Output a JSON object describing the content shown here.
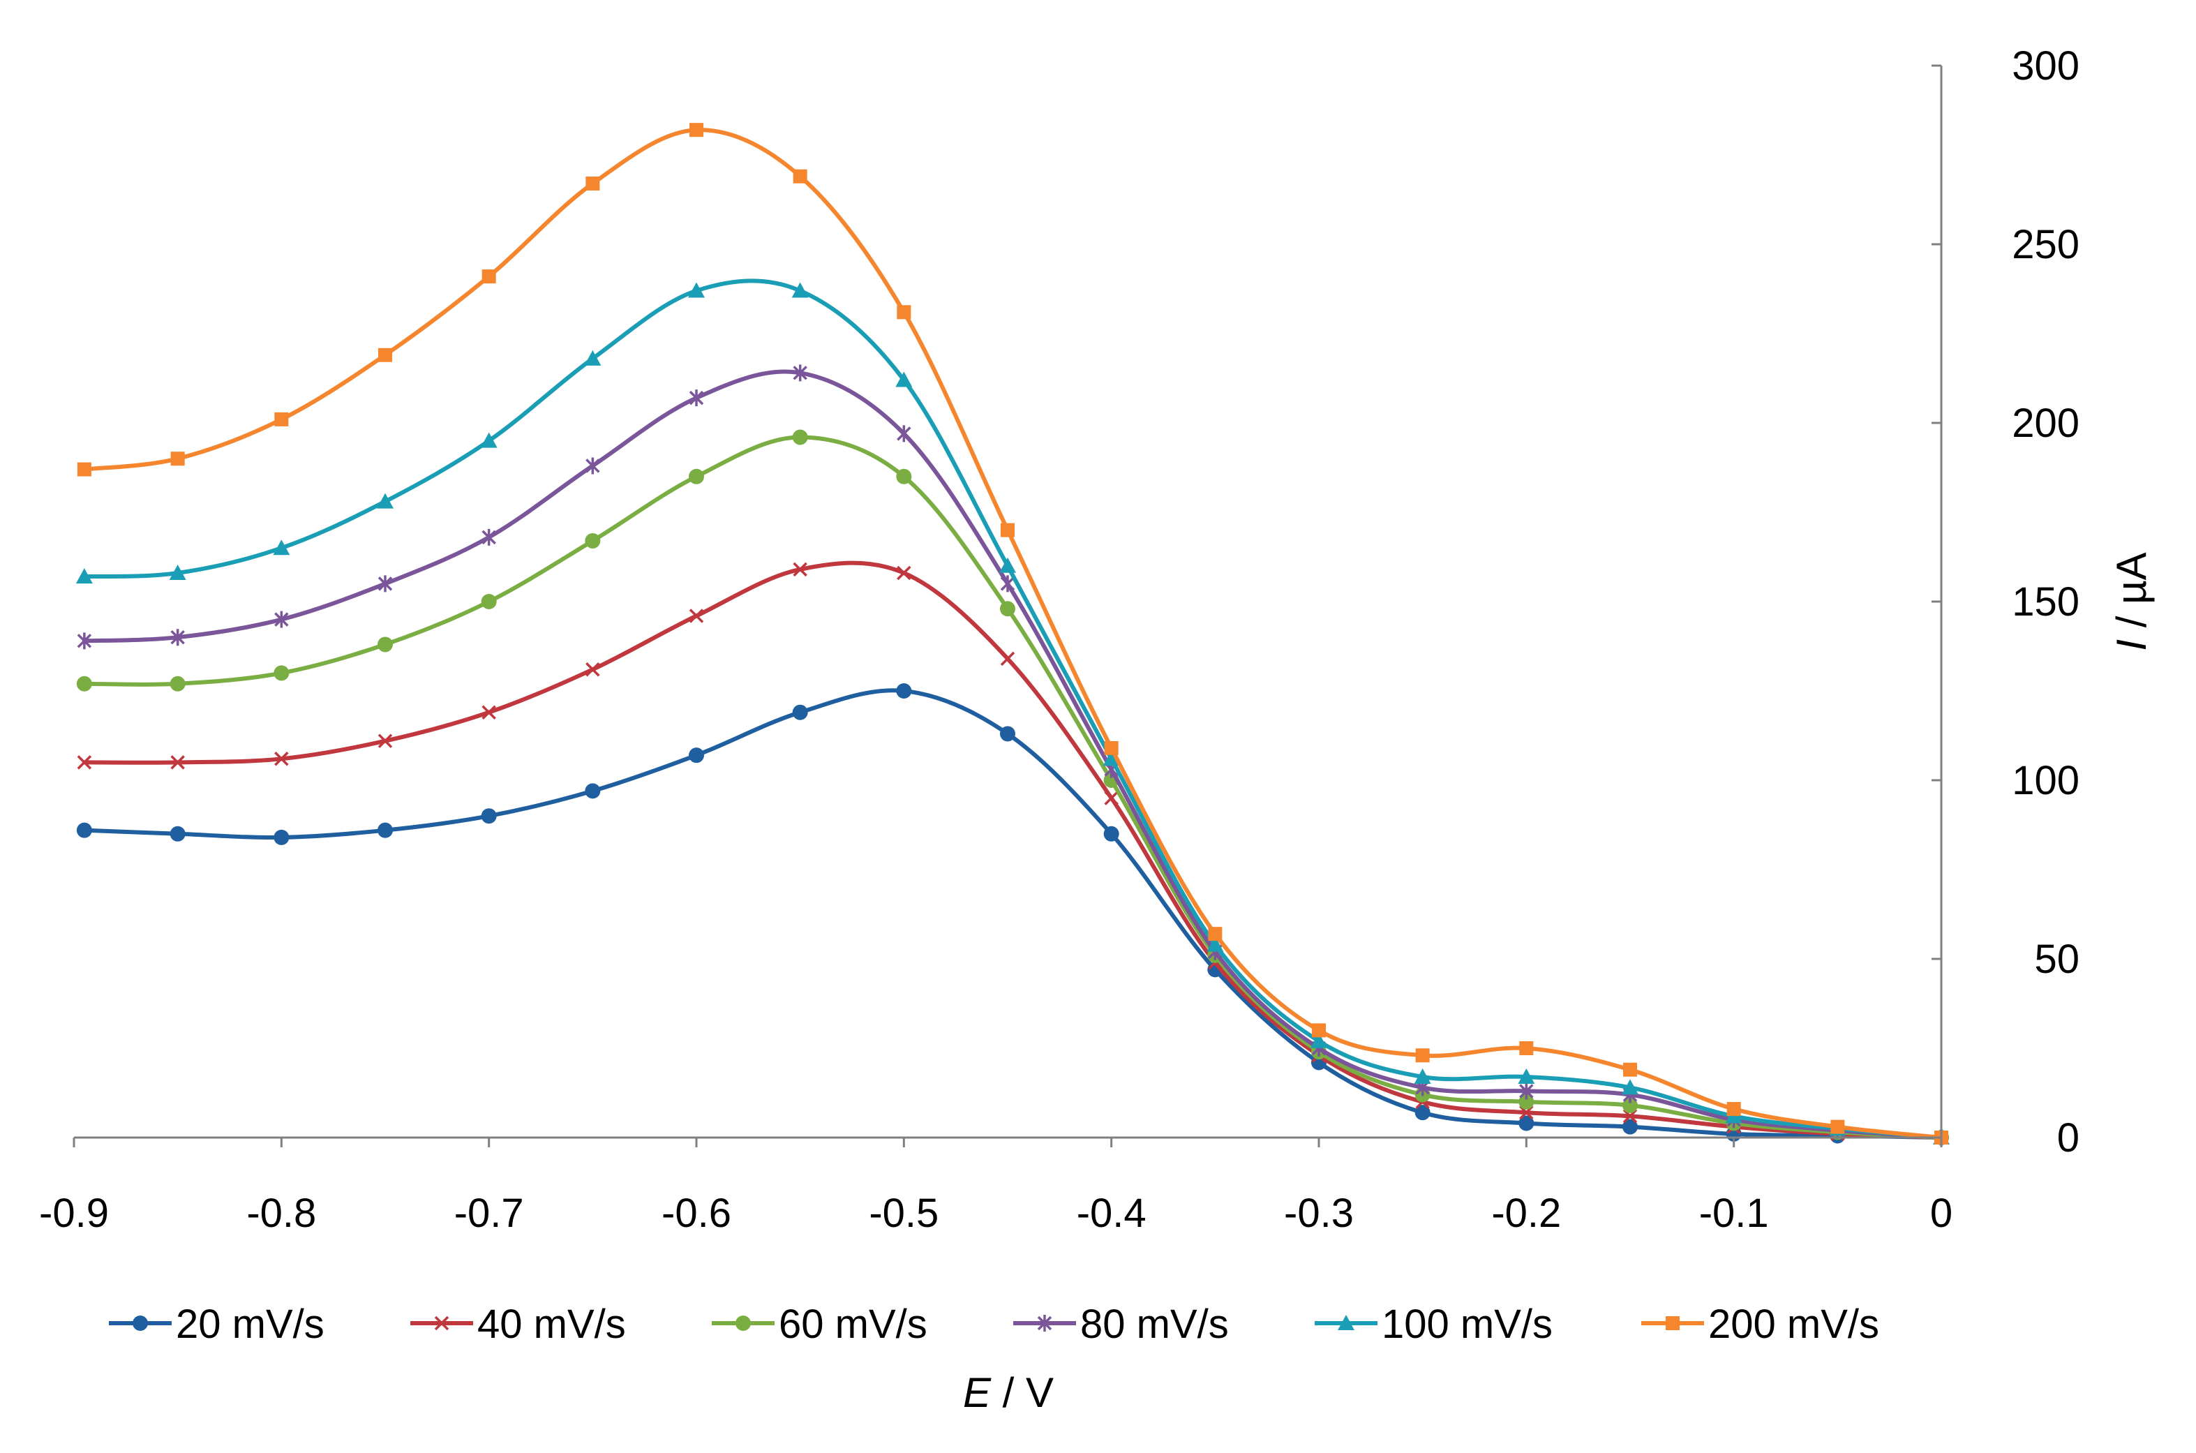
{
  "chart_data": {
    "type": "line",
    "title": "",
    "xlabel": {
      "italic": "E",
      "rest": " / V"
    },
    "ylabel": {
      "italic": "I",
      "rest": " / µA"
    },
    "xlim": [
      -0.9,
      0
    ],
    "ylim": [
      0,
      300
    ],
    "xticks": [
      -0.9,
      -0.8,
      -0.7,
      -0.6,
      -0.5,
      -0.4,
      -0.3,
      -0.2,
      -0.1,
      0
    ],
    "xtick_labels": [
      "-0.9",
      "-0.8",
      "-0.7",
      "-0.6",
      "-0.5",
      "-0.4",
      "-0.3",
      "-0.2",
      "-0.1",
      "0"
    ],
    "yticks": [
      0,
      50,
      100,
      150,
      200,
      250,
      300
    ],
    "ytick_labels": [
      "0",
      "50",
      "100",
      "150",
      "200",
      "250",
      "300"
    ],
    "y_axis_position": "right",
    "grid": false,
    "legend_position": "bottom",
    "x": [
      -0.895,
      -0.85,
      -0.8,
      -0.75,
      -0.7,
      -0.65,
      -0.6,
      -0.55,
      -0.5,
      -0.45,
      -0.4,
      -0.35,
      -0.3,
      -0.25,
      -0.2,
      -0.15,
      -0.1,
      -0.05,
      0
    ],
    "series": [
      {
        "name": "20 mV/s",
        "color": "#1F5FA0",
        "marker": "circle",
        "values": [
          86,
          85,
          84,
          86,
          90,
          97,
          107,
          119,
          125,
          113,
          85,
          47,
          21,
          7,
          4,
          3,
          1,
          0.5,
          0
        ]
      },
      {
        "name": "40 mV/s",
        "color": "#C0373D",
        "marker": "x",
        "values": [
          105,
          105,
          106,
          111,
          119,
          131,
          146,
          159,
          158,
          134,
          95,
          49,
          23,
          10,
          7,
          6,
          3,
          1,
          0
        ]
      },
      {
        "name": "60 mV/s",
        "color": "#7AAE43",
        "marker": "circle",
        "values": [
          127,
          127,
          130,
          138,
          150,
          167,
          185,
          196,
          185,
          148,
          100,
          51,
          24,
          12,
          10,
          9,
          4,
          1.5,
          0
        ]
      },
      {
        "name": "80 mV/s",
        "color": "#7B559A",
        "marker": "star",
        "values": [
          139,
          140,
          145,
          155,
          168,
          188,
          207,
          214,
          197,
          155,
          103,
          52,
          25,
          14,
          13,
          12,
          5,
          2,
          0
        ]
      },
      {
        "name": "100 mV/s",
        "color": "#1A9EB5",
        "marker": "triangle",
        "values": [
          157,
          158,
          165,
          178,
          195,
          218,
          237,
          237,
          212,
          160,
          106,
          54,
          27,
          17,
          17,
          14,
          6,
          2.5,
          0
        ]
      },
      {
        "name": "200 mV/s",
        "color": "#F5862E",
        "marker": "square",
        "values": [
          187,
          190,
          201,
          219,
          241,
          267,
          282,
          269,
          231,
          170,
          109,
          57,
          30,
          23,
          25,
          19,
          8,
          3,
          0
        ]
      }
    ]
  }
}
